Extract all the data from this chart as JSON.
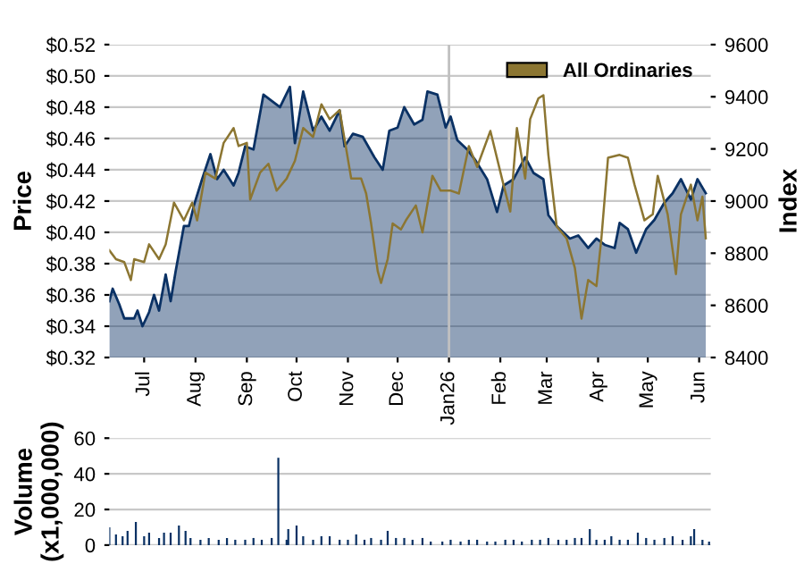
{
  "chart_data": [
    {
      "type": "area",
      "ylabel": "Price",
      "y2label": "Index",
      "xlim": [
        "2025-06-10",
        "2026-06-08"
      ],
      "xticks": [
        {
          "value": "2025-07-01",
          "label": "Jul"
        },
        {
          "value": "2025-08-01",
          "label": "Aug"
        },
        {
          "value": "2025-09-01",
          "label": "Sep"
        },
        {
          "value": "2025-10-01",
          "label": "Oct"
        },
        {
          "value": "2025-11-01",
          "label": "Nov"
        },
        {
          "value": "2025-12-01",
          "label": "Dec"
        },
        {
          "value": "2026-01-01",
          "label": "Jan26"
        },
        {
          "value": "2026-02-01",
          "label": "Feb"
        },
        {
          "value": "2026-03-01",
          "label": "Mar"
        },
        {
          "value": "2026-04-01",
          "label": "Apr"
        },
        {
          "value": "2026-05-01",
          "label": "May"
        },
        {
          "value": "2026-06-01",
          "label": "Jun"
        }
      ],
      "ylim": [
        0.32,
        0.52
      ],
      "yticks": [
        {
          "value": 0.32,
          "label": "$0.32"
        },
        {
          "value": 0.34,
          "label": "$0.34"
        },
        {
          "value": 0.36,
          "label": "$0.36"
        },
        {
          "value": 0.38,
          "label": "$0.38"
        },
        {
          "value": 0.4,
          "label": "$0.40"
        },
        {
          "value": 0.42,
          "label": "$0.42"
        },
        {
          "value": 0.44,
          "label": "$0.44"
        },
        {
          "value": 0.46,
          "label": "$0.46"
        },
        {
          "value": 0.48,
          "label": "$0.48"
        },
        {
          "value": 0.5,
          "label": "$0.50"
        },
        {
          "value": 0.52,
          "label": "$0.52"
        }
      ],
      "y2lim": [
        8400,
        9600
      ],
      "y2ticks": [
        8400,
        8600,
        8800,
        9000,
        9200,
        9400,
        9600
      ],
      "grid": "y",
      "legend": "top right",
      "ref_lines": [
        {
          "axis": "x",
          "value": "2026-01-01",
          "color": "#c0c0c0"
        }
      ],
      "series": [
        {
          "type": "area",
          "color": "#0a3164",
          "x": [
            "2025-06-10",
            "2025-06-12",
            "2025-06-16",
            "2025-06-19",
            "2025-06-25",
            "2025-06-27",
            "2025-06-30",
            "2025-07-04",
            "2025-07-07",
            "2025-07-10",
            "2025-07-14",
            "2025-07-17",
            "2025-07-20",
            "2025-07-25",
            "2025-07-28",
            "2025-07-31",
            "2025-08-05",
            "2025-08-10",
            "2025-08-14",
            "2025-08-18",
            "2025-08-24",
            "2025-08-27",
            "2025-08-31",
            "2025-09-05",
            "2025-09-11",
            "2025-09-16",
            "2025-09-21",
            "2025-09-27",
            "2025-09-30",
            "2025-10-05",
            "2025-10-11",
            "2025-10-16",
            "2025-10-21",
            "2025-10-27",
            "2025-10-30",
            "2025-11-04",
            "2025-11-10",
            "2025-11-17",
            "2025-11-22",
            "2025-11-26",
            "2025-12-01",
            "2025-12-05",
            "2025-12-11",
            "2025-12-16",
            "2025-12-19",
            "2025-12-25",
            "2025-12-30",
            "2026-01-02",
            "2026-01-06",
            "2026-01-12",
            "2026-01-17",
            "2026-01-24",
            "2026-01-30",
            "2026-02-03",
            "2026-02-09",
            "2026-02-16",
            "2026-02-21",
            "2026-02-27",
            "2026-03-02",
            "2026-03-07",
            "2026-03-15",
            "2026-03-20",
            "2026-03-26",
            "2026-03-31",
            "2026-04-05",
            "2026-04-11",
            "2026-04-14",
            "2026-04-19",
            "2026-04-24",
            "2026-04-30",
            "2026-05-05",
            "2026-05-11",
            "2026-05-16",
            "2026-05-21",
            "2026-05-27",
            "2026-05-31",
            "2026-06-05"
          ],
          "values": [
            0.356,
            0.364,
            0.354,
            0.345,
            0.345,
            0.35,
            0.34,
            0.349,
            0.36,
            0.35,
            0.373,
            0.356,
            0.375,
            0.404,
            0.404,
            0.417,
            0.434,
            0.45,
            0.434,
            0.44,
            0.43,
            0.438,
            0.455,
            0.453,
            0.488,
            0.484,
            0.48,
            0.493,
            0.457,
            0.49,
            0.465,
            0.474,
            0.465,
            0.478,
            0.455,
            0.463,
            0.461,
            0.448,
            0.44,
            0.465,
            0.467,
            0.48,
            0.469,
            0.472,
            0.49,
            0.488,
            0.467,
            0.474,
            0.459,
            0.453,
            0.446,
            0.434,
            0.413,
            0.43,
            0.434,
            0.448,
            0.438,
            0.434,
            0.411,
            0.404,
            0.396,
            0.398,
            0.39,
            0.396,
            0.392,
            0.39,
            0.406,
            0.402,
            0.387,
            0.402,
            0.408,
            0.419,
            0.425,
            0.434,
            0.421,
            0.434,
            0.425
          ]
        },
        {
          "type": "line",
          "name": "All Ordinaries",
          "color": "#8c7632",
          "axis": "y2",
          "x": [
            "2025-06-10",
            "2025-06-14",
            "2025-06-19",
            "2025-06-23",
            "2025-06-25",
            "2025-07-01",
            "2025-07-04",
            "2025-07-10",
            "2025-07-14",
            "2025-07-19",
            "2025-07-25",
            "2025-07-30",
            "2025-08-02",
            "2025-08-07",
            "2025-08-13",
            "2025-08-18",
            "2025-08-24",
            "2025-08-27",
            "2025-09-01",
            "2025-09-03",
            "2025-09-09",
            "2025-09-14",
            "2025-09-19",
            "2025-09-25",
            "2025-09-30",
            "2025-10-05",
            "2025-10-11",
            "2025-10-16",
            "2025-10-21",
            "2025-10-27",
            "2025-11-03",
            "2025-11-09",
            "2025-11-12",
            "2025-11-15",
            "2025-11-19",
            "2025-11-21",
            "2025-11-25",
            "2025-11-28",
            "2025-12-03",
            "2025-12-06",
            "2025-12-12",
            "2025-12-16",
            "2025-12-22",
            "2025-12-27",
            "2026-01-02",
            "2026-01-07",
            "2026-01-13",
            "2026-01-18",
            "2026-01-26",
            "2026-02-02",
            "2026-02-07",
            "2026-02-11",
            "2026-02-16",
            "2026-02-19",
            "2026-02-24",
            "2026-02-27",
            "2026-03-02",
            "2026-03-07",
            "2026-03-13",
            "2026-03-18",
            "2026-03-22",
            "2026-03-26",
            "2026-03-31",
            "2026-04-03",
            "2026-04-07",
            "2026-04-14",
            "2026-04-19",
            "2026-04-23",
            "2026-04-29",
            "2026-05-04",
            "2026-05-07",
            "2026-05-13",
            "2026-05-18",
            "2026-05-21",
            "2026-05-27",
            "2026-05-31",
            "2026-06-03",
            "2026-06-05"
          ],
          "values": [
            8811,
            8777,
            8766,
            8697,
            8777,
            8766,
            8834,
            8777,
            8834,
            8994,
            8926,
            8994,
            8926,
            9109,
            9086,
            9223,
            9280,
            9211,
            9223,
            9006,
            9109,
            9143,
            9040,
            9086,
            9154,
            9280,
            9246,
            9371,
            9314,
            9349,
            9086,
            9086,
            9029,
            8914,
            8731,
            8686,
            8777,
            8914,
            8891,
            8926,
            8983,
            8880,
            9097,
            9040,
            9040,
            9029,
            9211,
            9131,
            9269,
            9086,
            8960,
            9280,
            9086,
            9314,
            9394,
            9406,
            9177,
            8903,
            8857,
            8743,
            8549,
            8697,
            8674,
            8857,
            9166,
            9177,
            9166,
            9063,
            8926,
            8949,
            9097,
            8949,
            8720,
            8949,
            9063,
            8926,
            9017,
            8857
          ]
        }
      ]
    },
    {
      "type": "bar",
      "ylabel": "Volume\n(x1,000,000)",
      "tick_labels": "y",
      "xlim": [
        "2025-06-10",
        "2026-06-08"
      ],
      "ylim": [
        0,
        60
      ],
      "yticks": [
        0,
        20,
        40,
        60
      ],
      "grid": "y",
      "series": [
        {
          "color": "#0a3164",
          "x": [
            "2025-06-10",
            "2025-06-14",
            "2025-06-18",
            "2025-06-21",
            "2025-06-26",
            "2025-07-01",
            "2025-07-04",
            "2025-07-10",
            "2025-07-13",
            "2025-07-17",
            "2025-07-22",
            "2025-07-26",
            "2025-07-29",
            "2025-08-04",
            "2025-08-09",
            "2025-08-15",
            "2025-08-20",
            "2025-08-25",
            "2025-08-31",
            "2025-09-05",
            "2025-09-10",
            "2025-09-16",
            "2025-09-20",
            "2025-09-25",
            "2025-09-26",
            "2025-10-01",
            "2025-10-05",
            "2025-10-11",
            "2025-10-16",
            "2025-10-21",
            "2025-10-27",
            "2025-11-01",
            "2025-11-06",
            "2025-11-11",
            "2025-11-15",
            "2025-11-21",
            "2025-11-25",
            "2025-11-30",
            "2025-12-05",
            "2025-12-10",
            "2025-12-16",
            "2025-12-21",
            "2025-12-28",
            "2026-01-02",
            "2026-01-08",
            "2026-01-13",
            "2026-01-18",
            "2026-01-24",
            "2026-01-29",
            "2026-02-04",
            "2026-02-09",
            "2026-02-14",
            "2026-02-20",
            "2026-02-25",
            "2026-03-02",
            "2026-03-08",
            "2026-03-13",
            "2026-03-18",
            "2026-03-22",
            "2026-03-27",
            "2026-03-31",
            "2026-04-05",
            "2026-04-09",
            "2026-04-14",
            "2026-04-19",
            "2026-04-25",
            "2026-04-30",
            "2026-05-05",
            "2026-05-11",
            "2026-05-16",
            "2026-05-22",
            "2026-05-27",
            "2026-05-29",
            "2026-06-03",
            "2026-06-07"
          ],
          "values": [
            10,
            6,
            5,
            8,
            13,
            5,
            7,
            4,
            7,
            7,
            11,
            8,
            4,
            3,
            4,
            3,
            4,
            3,
            3,
            4,
            3,
            4,
            49,
            3,
            9,
            11,
            5,
            3,
            5,
            5,
            3,
            3,
            6,
            3,
            4,
            3,
            8,
            4,
            4,
            3,
            4,
            2,
            2,
            3,
            2,
            3,
            3,
            2,
            2,
            3,
            3,
            2,
            3,
            3,
            4,
            3,
            3,
            4,
            4,
            9,
            3,
            3,
            5,
            3,
            3,
            7,
            4,
            3,
            4,
            5,
            3,
            5,
            9,
            3,
            2
          ]
        }
      ]
    }
  ]
}
